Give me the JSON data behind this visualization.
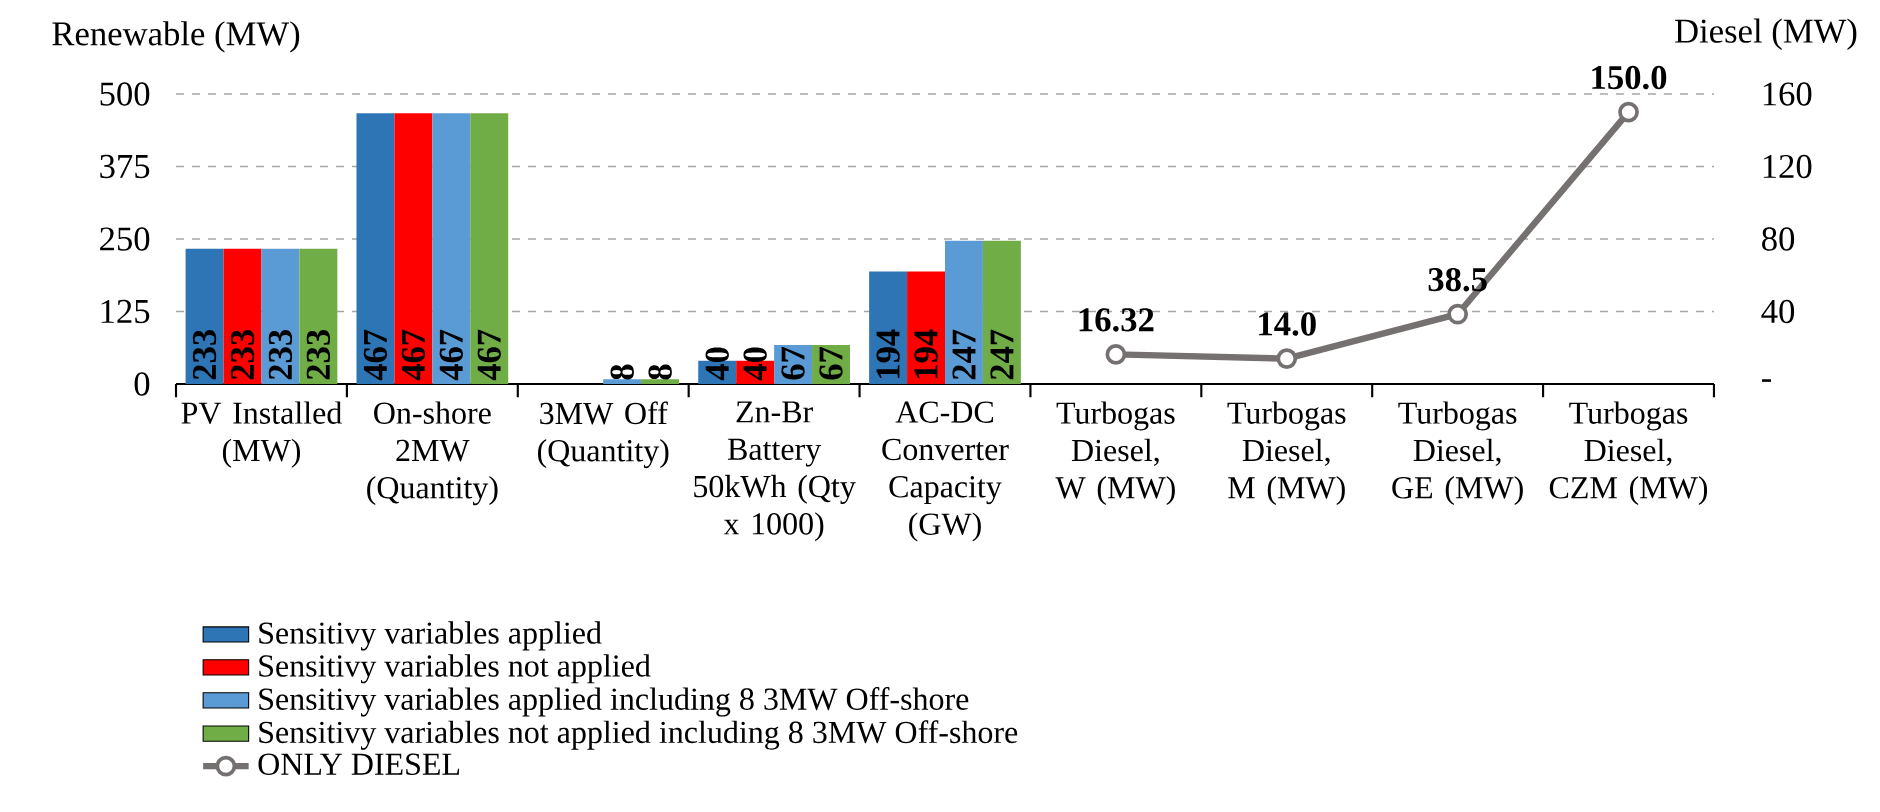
{
  "chart_data": {
    "type": "bar",
    "ylabel": "Renewable (MW)",
    "y2label": "Diesel (MW)",
    "categories": [
      "PV Installed (MW)",
      "On-shore 2MW (Quantity)",
      "3MW Off (Quantity)",
      "Zn-Br Battery 50kWh (Qty x 1000)",
      "AC-DC Converter Capacity (GW)",
      "Turbogas Diesel, W (MW)",
      "Turbogas Diesel, M (MW)",
      "Turbogas Diesel, GE (MW)",
      "Turbogas Diesel, CZM (MW)"
    ],
    "series": [
      {
        "name": "Sensitivy variables applied",
        "color": "#2e75b6",
        "values": [
          233,
          467,
          null,
          40,
          194,
          null,
          null,
          null,
          null
        ]
      },
      {
        "name": "Sensitivy variables not applied",
        "color": "#ff0000",
        "values": [
          233,
          467,
          null,
          40,
          194,
          null,
          null,
          null,
          null
        ]
      },
      {
        "name": "Sensitivy variables applied including 8 3MW Off-shore",
        "color": "#5b9bd5",
        "values": [
          233,
          467,
          8,
          67,
          247,
          null,
          null,
          null,
          null
        ]
      },
      {
        "name": "Sensitivy variables not applied including 8 3MW Off-shore",
        "color": "#70ad47",
        "values": [
          233,
          467,
          8,
          67,
          247,
          null,
          null,
          null,
          null
        ]
      },
      {
        "name": "ONLY DIESEL",
        "type": "line",
        "axis": "y2",
        "color": "#767171",
        "marker": "circle",
        "values": [
          null,
          null,
          null,
          null,
          null,
          16.32,
          14.0,
          38.5,
          150.0
        ],
        "value_labels": [
          null,
          null,
          null,
          null,
          null,
          "16.32",
          "14.0",
          "38.5",
          "150.0"
        ]
      }
    ],
    "ylim": [
      0,
      500
    ],
    "yticks": [
      0,
      125,
      250,
      375,
      500
    ],
    "y2lim": [
      0,
      160
    ],
    "y2ticks": [
      {
        "value": 0,
        "label": "-"
      },
      40,
      80,
      120,
      160
    ],
    "grid": "y",
    "legend": "bottom",
    "data_labels": true
  }
}
